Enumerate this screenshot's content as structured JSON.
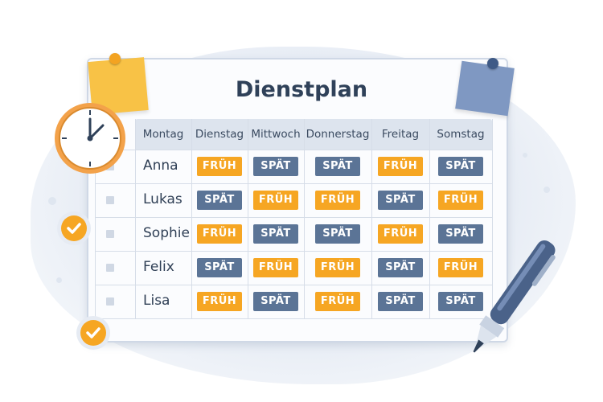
{
  "title": "Dienstplan",
  "days": [
    "Montag",
    "Dienstag",
    "Mittwoch",
    "Donnerstag",
    "Freitag",
    "Somstag"
  ],
  "shift_labels": {
    "early": "FRÜH",
    "late": "SPÄT"
  },
  "rows": [
    {
      "name": "Anna",
      "shifts": [
        "FRÜH",
        "SPÄT",
        "SPÄT",
        "FRÜH",
        "SPÄT"
      ]
    },
    {
      "name": "Lukas",
      "shifts": [
        "SPÄT",
        "FRÜH",
        "FRÜH",
        "SPÄT",
        "FRÜH"
      ]
    },
    {
      "name": "Sophie",
      "shifts": [
        "FRÜH",
        "SPÄT",
        "SPÄT",
        "FRÜH",
        "SPÄT"
      ]
    },
    {
      "name": "Felix",
      "shifts": [
        "SPÄT",
        "FRÜH",
        "FRÜH",
        "SPÄT",
        "FRÜH"
      ]
    },
    {
      "name": "Lisa",
      "shifts": [
        "FRÜH",
        "SPÄT",
        "FRÜH",
        "SPÄT",
        "SPÄT"
      ]
    }
  ],
  "colors": {
    "early": "#f6a623",
    "late": "#5b7496",
    "title": "#2f4159"
  },
  "icons": [
    "clock-icon",
    "sticky-note-yellow",
    "sticky-note-blue",
    "check-circle-icon",
    "pen-icon"
  ]
}
